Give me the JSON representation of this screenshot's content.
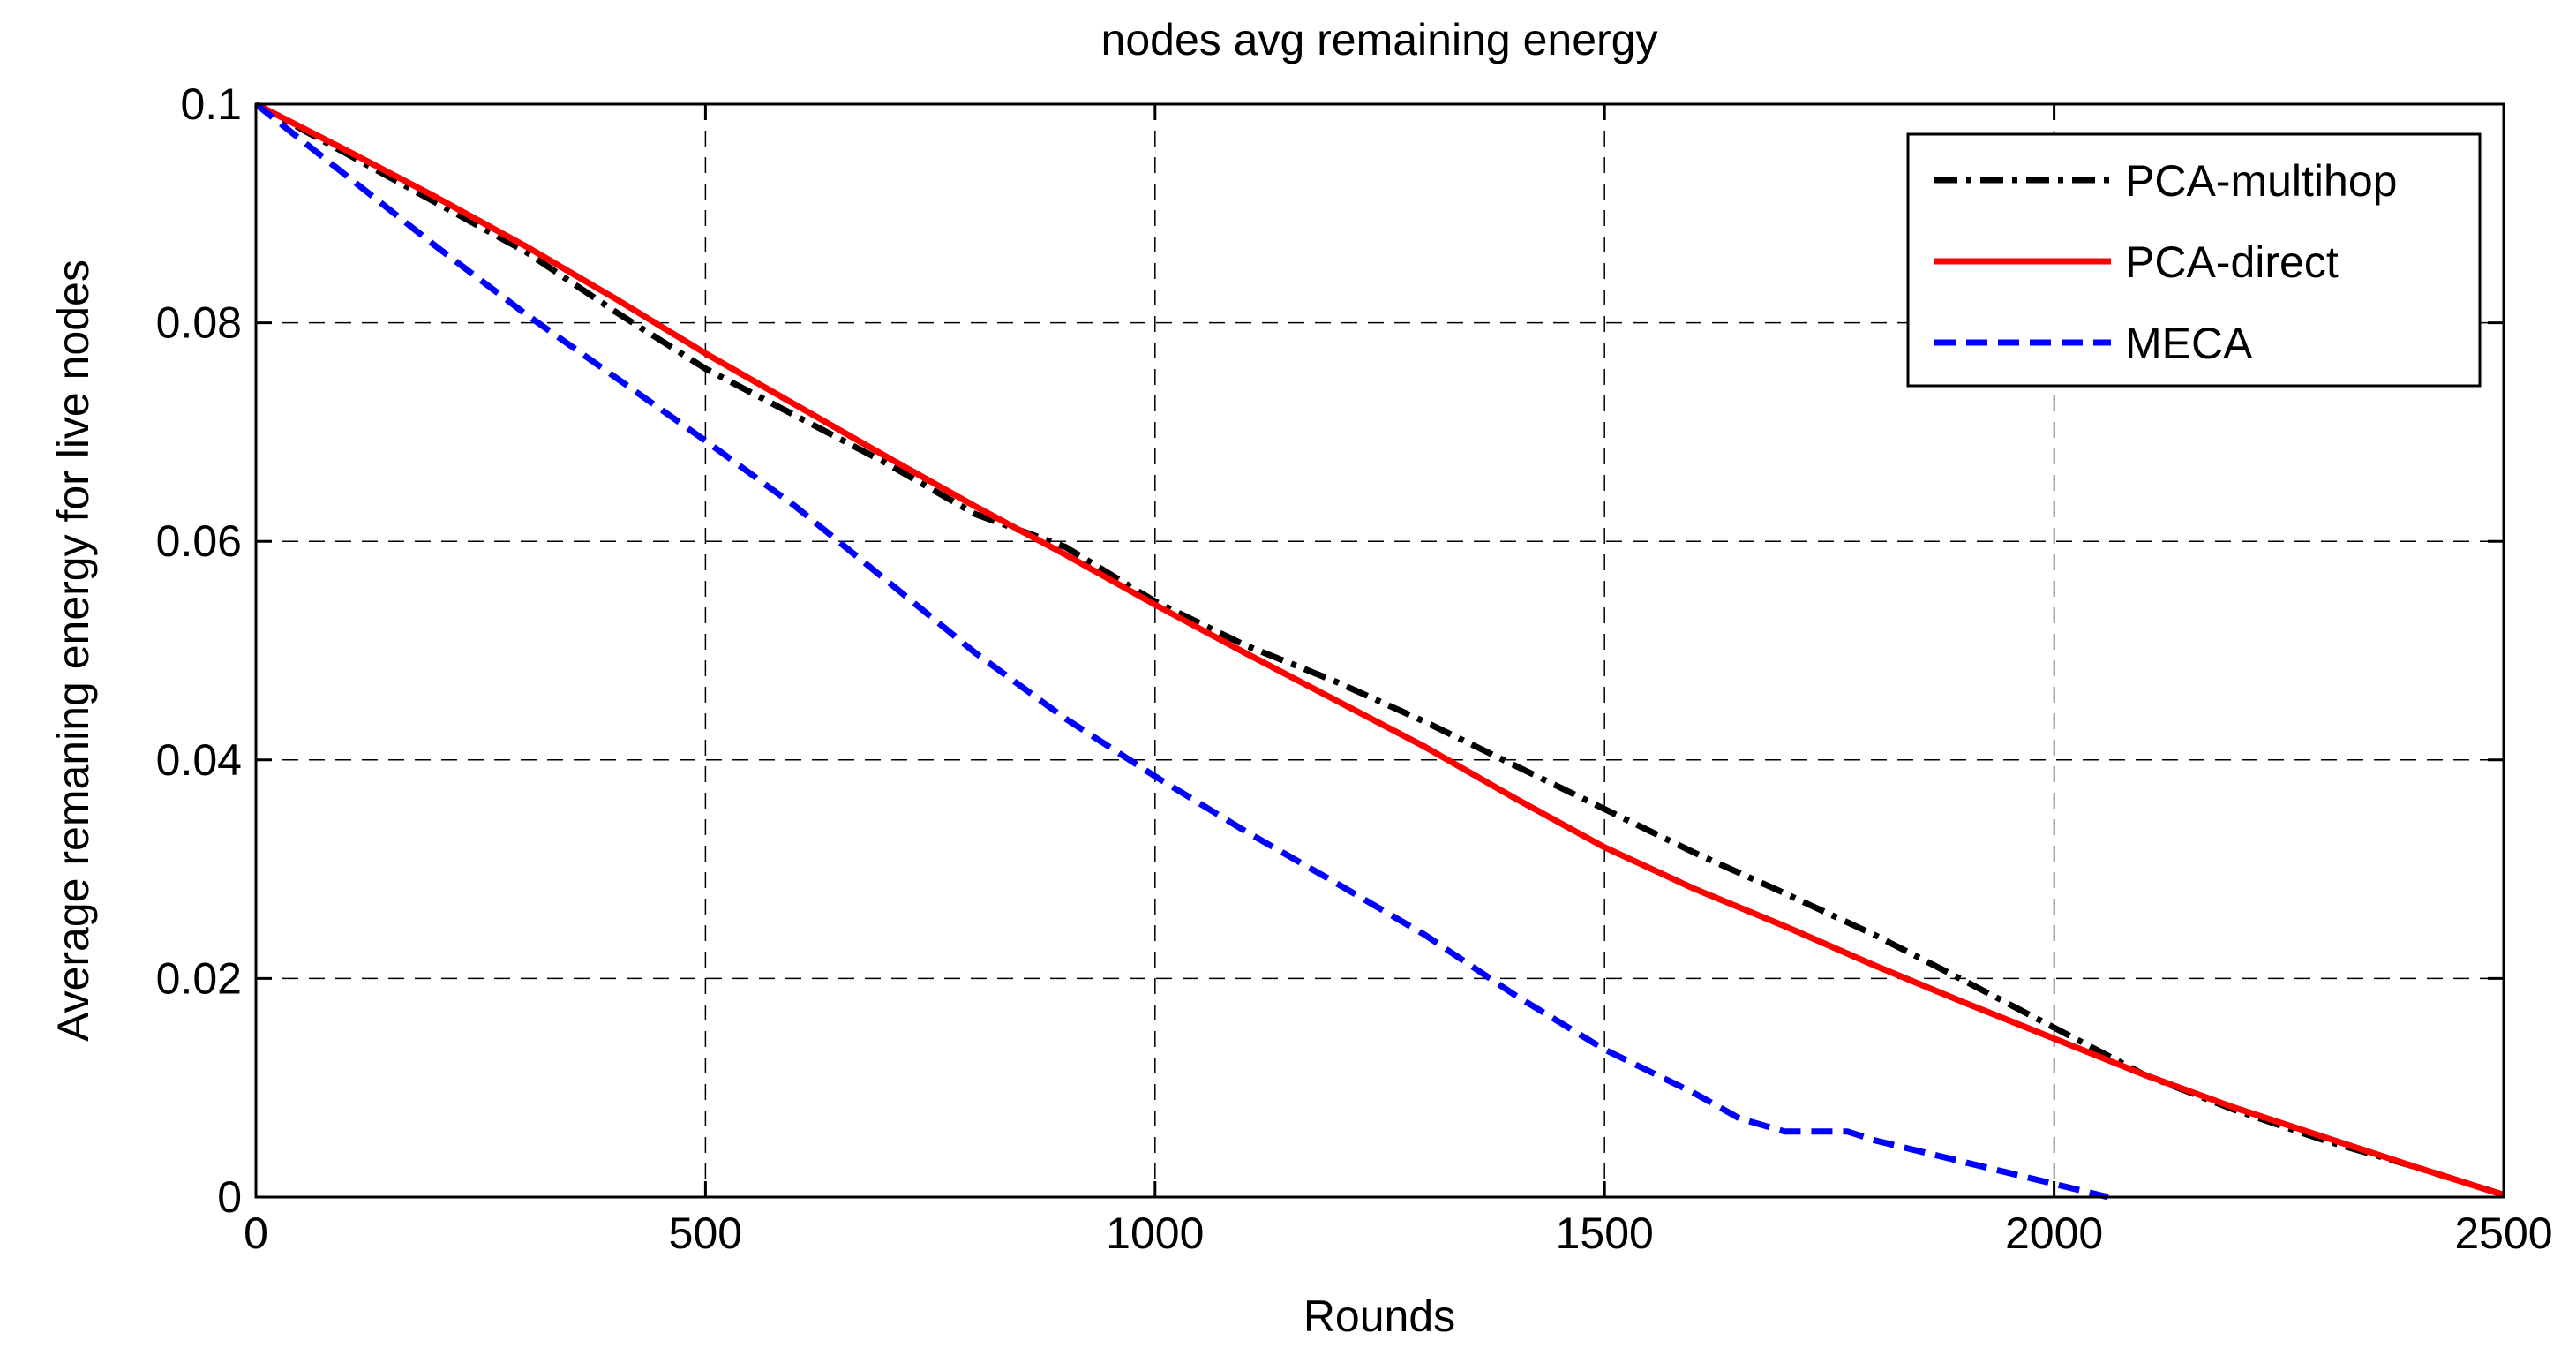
{
  "chart_data": {
    "type": "line",
    "title": "nodes avg remaining energy",
    "xlabel": "Rounds",
    "ylabel": "Average remaning energy  for live nodes",
    "xlim": [
      0,
      2500
    ],
    "ylim": [
      0,
      0.1
    ],
    "xticks": [
      0,
      500,
      1000,
      1500,
      2000,
      2500
    ],
    "xtick_labels": [
      "0",
      "500",
      "1000",
      "1500",
      "2000",
      "2500"
    ],
    "yticks": [
      0,
      0.02,
      0.04,
      0.06,
      0.08,
      0.1
    ],
    "ytick_labels": [
      "0",
      "0.02",
      "0.04",
      "0.06",
      "0.08",
      "0.1"
    ],
    "grid": true,
    "legend_position": "top-right",
    "series": [
      {
        "name": "PCA-multihop",
        "color": "#000000",
        "style": "dashdot",
        "x": [
          0,
          100,
          200,
          300,
          400,
          500,
          600,
          700,
          800,
          900,
          1000,
          1100,
          1200,
          1300,
          1400,
          1500,
          1600,
          1700,
          1800,
          1900,
          2000,
          2100,
          2200,
          2300,
          2400,
          2500
        ],
        "y": [
          0.1,
          0.0955,
          0.091,
          0.0865,
          0.081,
          0.0758,
          0.0715,
          0.0672,
          0.0625,
          0.0595,
          0.0545,
          0.0505,
          0.0472,
          0.0435,
          0.0395,
          0.0355,
          0.0315,
          0.0278,
          0.024,
          0.0198,
          0.0155,
          0.0112,
          0.008,
          0.0052,
          0.0028,
          0.0002
        ]
      },
      {
        "name": "PCA-direct",
        "color": "#ff0000",
        "style": "solid",
        "x": [
          0,
          100,
          200,
          300,
          400,
          500,
          600,
          700,
          800,
          900,
          1000,
          1100,
          1200,
          1300,
          1400,
          1500,
          1600,
          1700,
          1800,
          1900,
          2000,
          2100,
          2200,
          2300,
          2400,
          2500
        ],
        "y": [
          0.1,
          0.0958,
          0.0915,
          0.087,
          0.0822,
          0.0772,
          0.0725,
          0.0678,
          0.0632,
          0.0588,
          0.0542,
          0.0498,
          0.0455,
          0.0412,
          0.0365,
          0.032,
          0.0282,
          0.0248,
          0.0212,
          0.0178,
          0.0145,
          0.0112,
          0.0082,
          0.0055,
          0.0028,
          0.0002
        ]
      },
      {
        "name": "MECA",
        "color": "#0000ff",
        "style": "dashed",
        "x": [
          0,
          100,
          200,
          300,
          400,
          500,
          600,
          700,
          800,
          900,
          1000,
          1100,
          1200,
          1300,
          1400,
          1500,
          1600,
          1650,
          1700,
          1770,
          1800,
          1900,
          2000,
          2060
        ],
        "y": [
          0.1,
          0.0935,
          0.087,
          0.0808,
          0.075,
          0.0692,
          0.0632,
          0.0565,
          0.0498,
          0.0438,
          0.0385,
          0.0335,
          0.0288,
          0.024,
          0.0185,
          0.0135,
          0.0095,
          0.0072,
          0.006,
          0.006,
          0.0052,
          0.0032,
          0.0012,
          0.0
        ]
      }
    ]
  }
}
